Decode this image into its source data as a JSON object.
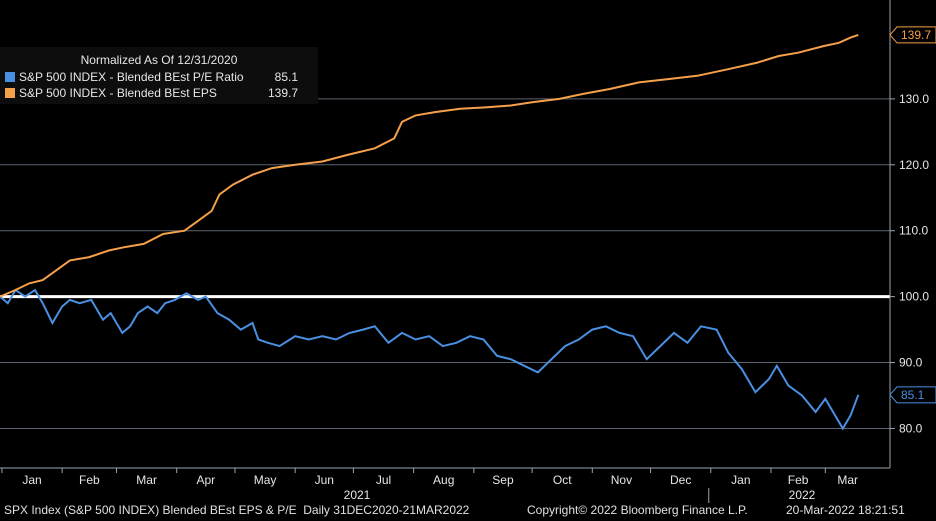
{
  "chart_data": {
    "type": "line",
    "legend": {
      "title": "Normalized As Of 12/31/2020",
      "placement": "top-left"
    },
    "series": [
      {
        "name": "S&P 500 INDEX - Blended BEst P/E Ratio",
        "last_value": "85.1",
        "color": "#4a90e2",
        "points": [
          [
            "2020-12-31",
            100.0
          ],
          [
            "2021-01-04",
            99.0
          ],
          [
            "2021-01-08",
            101.0
          ],
          [
            "2021-01-13",
            100.0
          ],
          [
            "2021-01-18",
            101.0
          ],
          [
            "2021-01-22",
            99.0
          ],
          [
            "2021-01-27",
            96.0
          ],
          [
            "2021-02-01",
            98.5
          ],
          [
            "2021-02-05",
            99.5
          ],
          [
            "2021-02-10",
            99.0
          ],
          [
            "2021-02-16",
            99.5
          ],
          [
            "2021-02-22",
            96.5
          ],
          [
            "2021-02-26",
            97.5
          ],
          [
            "2021-03-04",
            94.5
          ],
          [
            "2021-03-08",
            95.5
          ],
          [
            "2021-03-12",
            97.5
          ],
          [
            "2021-03-17",
            98.5
          ],
          [
            "2021-03-22",
            97.5
          ],
          [
            "2021-03-26",
            99.0
          ],
          [
            "2021-03-31",
            99.5
          ],
          [
            "2021-04-06",
            100.5
          ],
          [
            "2021-04-12",
            99.5
          ],
          [
            "2021-04-16",
            100.0
          ],
          [
            "2021-04-22",
            97.5
          ],
          [
            "2021-04-28",
            96.5
          ],
          [
            "2021-05-04",
            95.0
          ],
          [
            "2021-05-10",
            96.0
          ],
          [
            "2021-05-13",
            93.5
          ],
          [
            "2021-05-18",
            93.0
          ],
          [
            "2021-05-24",
            92.5
          ],
          [
            "2021-06-01",
            94.0
          ],
          [
            "2021-06-08",
            93.5
          ],
          [
            "2021-06-15",
            94.0
          ],
          [
            "2021-06-22",
            93.5
          ],
          [
            "2021-06-29",
            94.5
          ],
          [
            "2021-07-06",
            95.0
          ],
          [
            "2021-07-12",
            95.5
          ],
          [
            "2021-07-19",
            93.0
          ],
          [
            "2021-07-26",
            94.5
          ],
          [
            "2021-08-02",
            93.5
          ],
          [
            "2021-08-09",
            94.0
          ],
          [
            "2021-08-16",
            92.5
          ],
          [
            "2021-08-23",
            93.0
          ],
          [
            "2021-08-30",
            94.0
          ],
          [
            "2021-09-06",
            93.5
          ],
          [
            "2021-09-13",
            91.0
          ],
          [
            "2021-09-20",
            90.5
          ],
          [
            "2021-09-27",
            89.5
          ],
          [
            "2021-10-04",
            88.5
          ],
          [
            "2021-10-11",
            90.5
          ],
          [
            "2021-10-18",
            92.5
          ],
          [
            "2021-10-25",
            93.5
          ],
          [
            "2021-11-01",
            95.0
          ],
          [
            "2021-11-08",
            95.5
          ],
          [
            "2021-11-15",
            94.5
          ],
          [
            "2021-11-22",
            94.0
          ],
          [
            "2021-11-29",
            90.5
          ],
          [
            "2021-12-06",
            92.5
          ],
          [
            "2021-12-13",
            94.5
          ],
          [
            "2021-12-20",
            93.0
          ],
          [
            "2021-12-27",
            95.5
          ],
          [
            "2022-01-04",
            95.0
          ],
          [
            "2022-01-10",
            91.5
          ],
          [
            "2022-01-17",
            89.0
          ],
          [
            "2022-01-24",
            85.5
          ],
          [
            "2022-01-31",
            87.5
          ],
          [
            "2022-02-04",
            89.5
          ],
          [
            "2022-02-10",
            86.5
          ],
          [
            "2022-02-17",
            85.0
          ],
          [
            "2022-02-24",
            82.5
          ],
          [
            "2022-03-01",
            84.5
          ],
          [
            "2022-03-07",
            81.5
          ],
          [
            "2022-03-10",
            80.0
          ],
          [
            "2022-03-14",
            82.0
          ],
          [
            "2022-03-18",
            85.1
          ]
        ]
      },
      {
        "name": "S&P 500 INDEX - Blended BEst EPS",
        "last_value": "139.7",
        "color": "#f5a04a",
        "points": [
          [
            "2020-12-31",
            100.0
          ],
          [
            "2021-01-08",
            101.0
          ],
          [
            "2021-01-15",
            102.0
          ],
          [
            "2021-01-22",
            102.5
          ],
          [
            "2021-01-29",
            104.0
          ],
          [
            "2021-02-05",
            105.5
          ],
          [
            "2021-02-15",
            106.0
          ],
          [
            "2021-02-25",
            107.0
          ],
          [
            "2021-03-05",
            107.5
          ],
          [
            "2021-03-15",
            108.0
          ],
          [
            "2021-03-25",
            109.5
          ],
          [
            "2021-04-05",
            110.0
          ],
          [
            "2021-04-12",
            111.5
          ],
          [
            "2021-04-19",
            113.0
          ],
          [
            "2021-04-23",
            115.5
          ],
          [
            "2021-04-30",
            117.0
          ],
          [
            "2021-05-10",
            118.5
          ],
          [
            "2021-05-20",
            119.5
          ],
          [
            "2021-06-01",
            120.0
          ],
          [
            "2021-06-15",
            120.5
          ],
          [
            "2021-06-28",
            121.5
          ],
          [
            "2021-07-12",
            122.5
          ],
          [
            "2021-07-22",
            124.0
          ],
          [
            "2021-07-26",
            126.5
          ],
          [
            "2021-08-02",
            127.5
          ],
          [
            "2021-08-12",
            128.0
          ],
          [
            "2021-08-25",
            128.5
          ],
          [
            "2021-09-07",
            128.7
          ],
          [
            "2021-09-20",
            129.0
          ],
          [
            "2021-10-01",
            129.5
          ],
          [
            "2021-10-15",
            130.0
          ],
          [
            "2021-10-28",
            130.8
          ],
          [
            "2021-11-10",
            131.5
          ],
          [
            "2021-11-25",
            132.5
          ],
          [
            "2021-12-10",
            133.0
          ],
          [
            "2021-12-25",
            133.5
          ],
          [
            "2022-01-10",
            134.5
          ],
          [
            "2022-01-25",
            135.5
          ],
          [
            "2022-02-05",
            136.5
          ],
          [
            "2022-02-15",
            137.0
          ],
          [
            "2022-02-28",
            138.0
          ],
          [
            "2022-03-08",
            138.5
          ],
          [
            "2022-03-14",
            139.3
          ],
          [
            "2022-03-18",
            139.7
          ]
        ]
      }
    ],
    "reference_line": 100.0,
    "x_range": [
      "2020-12-31",
      "2022-03-24"
    ],
    "ylim": [
      74,
      145
    ],
    "y_ticks": [
      "130.0",
      "120.0",
      "110.0",
      "100.0",
      "90.0",
      "80.0"
    ],
    "month_labels": [
      "Jan",
      "Feb",
      "Mar",
      "Apr",
      "May",
      "Jun",
      "Jul",
      "Aug",
      "Sep",
      "Oct",
      "Nov",
      "Dec",
      "Jan",
      "Feb",
      "Mar"
    ],
    "year_labels": [
      "2021",
      "2022"
    ],
    "grid": true
  },
  "footer": {
    "left": "SPX Index (S&P 500 INDEX) Blended BEst EPS & P/E  Daily 31DEC2020-21MAR2022",
    "center": "Copyright© 2022 Bloomberg Finance L.P.",
    "right": "20-Mar-2022 18:21:51"
  }
}
